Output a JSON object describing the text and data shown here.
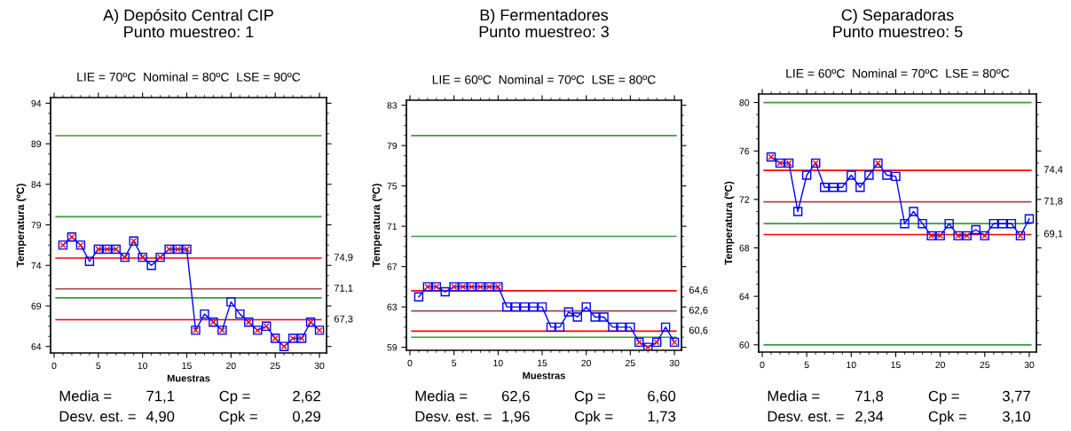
{
  "chart_data": [
    {
      "type": "line",
      "title": "A) Depósito Central CIP\nPunto muestreo: 1",
      "subtitle": "LIE = 70ºC  Nominal = 80ºC  LSE = 90ºC",
      "xlabel": "Muestras",
      "ylabel": "Temperatura (ºC)",
      "x": [
        1,
        2,
        3,
        4,
        5,
        6,
        7,
        8,
        9,
        10,
        11,
        12,
        13,
        14,
        15,
        16,
        17,
        18,
        19,
        20,
        21,
        22,
        23,
        24,
        25,
        26,
        27,
        28,
        29,
        30
      ],
      "series": [
        {
          "type": "line",
          "color": "#0000ff",
          "marker": "square",
          "values": [
            76.5,
            77.5,
            76.5,
            74.5,
            76.0,
            76.0,
            76.0,
            75.0,
            77.0,
            75.0,
            74.0,
            75.0,
            76.0,
            76.0,
            76.0,
            66.0,
            68.0,
            67.0,
            66.0,
            69.5,
            68.0,
            67.0,
            66.0,
            66.5,
            65.0,
            64.0,
            65.0,
            65.0,
            67.0,
            66.0
          ]
        },
        {
          "type": "scatter",
          "color": "#ff0000",
          "marker": "cross",
          "values": [
            76.5,
            77.5,
            76.5,
            null,
            76.0,
            76.0,
            76.0,
            75.0,
            77.0,
            75.0,
            null,
            75.0,
            76.0,
            76.0,
            76.0,
            66.0,
            null,
            67.0,
            66.0,
            null,
            null,
            67.0,
            66.0,
            66.5,
            65.0,
            64.0,
            65.0,
            65.0,
            67.0,
            66.0
          ]
        }
      ],
      "xlim": [
        -0.4,
        30.8
      ],
      "ylim": [
        63.2,
        94.7
      ],
      "xticks": [
        0,
        5,
        10,
        15,
        20,
        25,
        30
      ],
      "yticks": [
        64,
        69,
        74,
        79,
        84,
        89,
        94
      ],
      "ref_lines": [
        {
          "axis": "y",
          "value": 90,
          "color": "#3c9a3c"
        },
        {
          "axis": "y",
          "value": 80,
          "color": "#3c9a3c"
        },
        {
          "axis": "y",
          "value": 70,
          "color": "#3c9a3c"
        },
        {
          "axis": "y",
          "value": 74.9,
          "label": "74,9",
          "color": "#ff0000"
        },
        {
          "axis": "y",
          "value": 71.1,
          "label": "71,1",
          "color": "#a04848"
        },
        {
          "axis": "y",
          "value": 67.3,
          "label": "67,3",
          "color": "#ff0000"
        }
      ],
      "annotations": [
        "Media =",
        "71,1",
        "Cp =",
        "2,62",
        "Desv. est. =",
        "4,90",
        "Cpk =",
        "0,29"
      ]
    },
    {
      "type": "line",
      "title": "B) Fermentadores\nPunto muestreo: 3",
      "subtitle": "LIE = 60ºC  Nominal = 70ºC  LSE = 80ºC",
      "xlabel": "Muestras",
      "ylabel": "Temperatura (ºC)",
      "x": [
        1,
        2,
        3,
        4,
        5,
        6,
        7,
        8,
        9,
        10,
        11,
        12,
        13,
        14,
        15,
        16,
        17,
        18,
        19,
        20,
        21,
        22,
        23,
        24,
        25,
        26,
        27,
        28,
        29,
        30
      ],
      "series": [
        {
          "type": "line",
          "color": "#0000ff",
          "marker": "square",
          "values": [
            64.0,
            65.0,
            65.0,
            64.5,
            65.0,
            65.0,
            65.0,
            65.0,
            65.0,
            65.0,
            63.0,
            63.0,
            63.0,
            63.0,
            63.0,
            61.0,
            61.0,
            62.5,
            62.0,
            63.0,
            62.0,
            62.0,
            61.0,
            61.0,
            61.0,
            59.5,
            59.0,
            59.5,
            61.0,
            59.5
          ]
        },
        {
          "type": "scatter",
          "color": "#ff0000",
          "marker": "cross",
          "values": [
            null,
            65.0,
            65.0,
            null,
            65.0,
            65.0,
            65.0,
            65.0,
            65.0,
            65.0,
            null,
            null,
            null,
            null,
            null,
            null,
            null,
            null,
            null,
            null,
            null,
            null,
            null,
            null,
            null,
            59.5,
            59.0,
            59.5,
            null,
            59.5
          ]
        }
      ],
      "xlim": [
        -0.4,
        30.8
      ],
      "ylim": [
        58.7,
        83.5
      ],
      "xticks": [
        0,
        5,
        10,
        15,
        20,
        25,
        30
      ],
      "yticks": [
        59,
        63,
        67,
        71,
        75,
        79,
        83
      ],
      "ref_lines": [
        {
          "axis": "y",
          "value": 80,
          "color": "#3c9a3c"
        },
        {
          "axis": "y",
          "value": 70,
          "color": "#3c9a3c"
        },
        {
          "axis": "y",
          "value": 60,
          "color": "#3c9a3c"
        },
        {
          "axis": "y",
          "value": 64.6,
          "label": "64,6",
          "color": "#ff0000"
        },
        {
          "axis": "y",
          "value": 62.6,
          "label": "62,6",
          "color": "#a04848"
        },
        {
          "axis": "y",
          "value": 60.6,
          "label": "60,6",
          "color": "#ff0000"
        }
      ],
      "annotations": [
        "Media =",
        "62,6",
        "Cp =",
        "6,60",
        "Desv. est. =",
        "1,96",
        "Cpk =",
        "1,73"
      ]
    },
    {
      "type": "line",
      "title": "C) Separadoras\nPunto muestreo: 5",
      "subtitle": "LIE = 60ºC  Nominal = 70ºC  LSE = 80ºC",
      "ylabel": "Temperatura (ºC)",
      "x": [
        1,
        2,
        3,
        4,
        5,
        6,
        7,
        8,
        9,
        10,
        11,
        12,
        13,
        14,
        15,
        16,
        17,
        18,
        19,
        20,
        21,
        22,
        23,
        24,
        25,
        26,
        27,
        28,
        29,
        30
      ],
      "series": [
        {
          "type": "line",
          "color": "#0000ff",
          "marker": "square",
          "values": [
            75.5,
            75.0,
            75.0,
            71.0,
            74.0,
            75.0,
            73.0,
            73.0,
            73.0,
            74.0,
            73.0,
            74.0,
            75.0,
            74.0,
            73.9,
            70.0,
            71.0,
            70.0,
            69.0,
            69.0,
            70.0,
            69.0,
            69.0,
            69.5,
            69.0,
            70.0,
            70.0,
            70.0,
            69.0,
            70.4
          ]
        },
        {
          "type": "scatter",
          "color": "#ff0000",
          "marker": "cross",
          "values": [
            75.5,
            75.0,
            75.0,
            null,
            null,
            75.0,
            null,
            null,
            null,
            null,
            null,
            null,
            75.0,
            null,
            null,
            null,
            null,
            null,
            69.0,
            69.0,
            null,
            69.0,
            69.0,
            null,
            69.0,
            null,
            null,
            null,
            69.0,
            null
          ]
        }
      ],
      "xlim": [
        -0.4,
        30.8
      ],
      "ylim": [
        59.4,
        80.7
      ],
      "xticks": [
        0,
        5,
        10,
        15,
        20,
        25,
        30
      ],
      "yticks": [
        60,
        64,
        68,
        72,
        76,
        80
      ],
      "ref_lines": [
        {
          "axis": "y",
          "value": 80,
          "color": "#3c9a3c"
        },
        {
          "axis": "y",
          "value": 70,
          "color": "#3c9a3c"
        },
        {
          "axis": "y",
          "value": 60,
          "color": "#3c9a3c"
        },
        {
          "axis": "y",
          "value": 74.4,
          "label": "74,4",
          "color": "#ff0000"
        },
        {
          "axis": "y",
          "value": 71.8,
          "label": "71,8",
          "color": "#a04848"
        },
        {
          "axis": "y",
          "value": 69.1,
          "label": "69,1",
          "color": "#ff0000"
        }
      ],
      "annotations": [
        "Media =",
        "71,8",
        "Cp =",
        "3,77",
        "Desv. est. =",
        "2,34",
        "Cpk =",
        "3,10"
      ]
    }
  ]
}
